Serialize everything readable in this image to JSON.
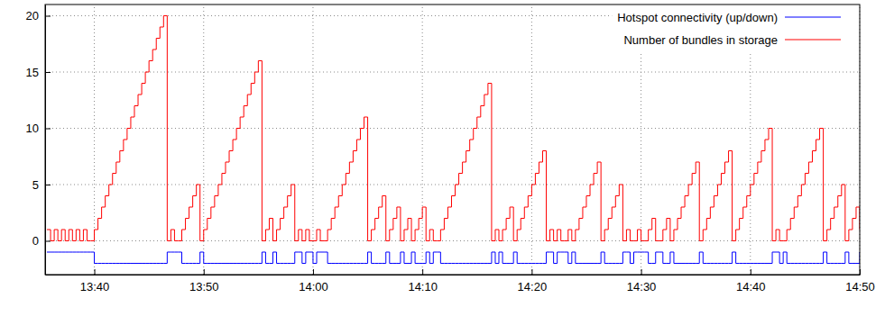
{
  "chart_data": {
    "type": "line",
    "line_style": "steps",
    "grid": true,
    "legend": "top-right",
    "xlim": [
      48930,
      53400
    ],
    "xticks": [
      {
        "value": 49200,
        "label": "13:40"
      },
      {
        "value": 49800,
        "label": "13:50"
      },
      {
        "value": 50400,
        "label": "14:00"
      },
      {
        "value": 51000,
        "label": "14:10"
      },
      {
        "value": 51600,
        "label": "14:20"
      },
      {
        "value": 52200,
        "label": "14:30"
      },
      {
        "value": 52800,
        "label": "14:40"
      },
      {
        "value": 53400,
        "label": "14:50"
      }
    ],
    "ylim": [
      -3,
      21
    ],
    "yticks": [
      0,
      5,
      10,
      15,
      20
    ],
    "x": [
      48940,
      48960,
      48980,
      49000,
      49020,
      49040,
      49060,
      49080,
      49100,
      49120,
      49140,
      49160,
      49180,
      49200,
      49220,
      49240,
      49260,
      49280,
      49300,
      49320,
      49340,
      49360,
      49380,
      49400,
      49420,
      49440,
      49460,
      49480,
      49500,
      49520,
      49540,
      49560,
      49580,
      49600,
      49620,
      49640,
      49660,
      49680,
      49700,
      49720,
      49740,
      49760,
      49780,
      49800,
      49820,
      49840,
      49860,
      49880,
      49900,
      49920,
      49940,
      49960,
      49980,
      50000,
      50020,
      50040,
      50060,
      50080,
      50100,
      50120,
      50140,
      50160,
      50180,
      50200,
      50220,
      50240,
      50260,
      50280,
      50300,
      50320,
      50340,
      50360,
      50380,
      50400,
      50420,
      50440,
      50460,
      50480,
      50500,
      50520,
      50540,
      50560,
      50580,
      50600,
      50620,
      50640,
      50660,
      50680,
      50700,
      50720,
      50740,
      50760,
      50780,
      50800,
      50820,
      50840,
      50860,
      50880,
      50900,
      50920,
      50940,
      50960,
      50980,
      51000,
      51020,
      51040,
      51060,
      51080,
      51100,
      51120,
      51140,
      51160,
      51180,
      51200,
      51220,
      51240,
      51260,
      51280,
      51300,
      51320,
      51340,
      51360,
      51380,
      51400,
      51420,
      51440,
      51460,
      51480,
      51500,
      51520,
      51540,
      51560,
      51580,
      51600,
      51620,
      51640,
      51660,
      51680,
      51700,
      51720,
      51740,
      51760,
      51780,
      51800,
      51820,
      51840,
      51860,
      51880,
      51900,
      51920,
      51940,
      51960,
      51980,
      52000,
      52020,
      52040,
      52060,
      52080,
      52100,
      52120,
      52140,
      52160,
      52180,
      52200,
      52220,
      52240,
      52260,
      52280,
      52300,
      52320,
      52340,
      52360,
      52380,
      52400,
      52420,
      52440,
      52460,
      52480,
      52500,
      52520,
      52540,
      52560,
      52580,
      52600,
      52620,
      52640,
      52660,
      52680,
      52700,
      52720,
      52740,
      52760,
      52780,
      52800,
      52820,
      52840,
      52860,
      52880,
      52900,
      52920,
      52940,
      52960,
      52980,
      53000,
      53020,
      53040,
      53060,
      53080,
      53100,
      53120,
      53140,
      53160,
      53180,
      53200,
      53220,
      53240,
      53260,
      53280,
      53300,
      53320,
      53340,
      53360,
      53380,
      53400
    ],
    "series": [
      {
        "name": "Hotspot connectivity (up/down)",
        "color": "#0000ff",
        "values": [
          -1,
          -1,
          -1,
          -1,
          -1,
          -1,
          -1,
          -1,
          -1,
          -1,
          -1,
          -1,
          -1,
          -2,
          -2,
          -2,
          -2,
          -2,
          -2,
          -2,
          -2,
          -2,
          -2,
          -2,
          -2,
          -2,
          -2,
          -2,
          -2,
          -2,
          -2,
          -2,
          -2,
          -1,
          -1,
          -1,
          -1,
          -2,
          -2,
          -2,
          -2,
          -2,
          -1,
          -2,
          -2,
          -2,
          -2,
          -2,
          -2,
          -2,
          -2,
          -2,
          -2,
          -2,
          -2,
          -2,
          -2,
          -2,
          -2,
          -1,
          -2,
          -2,
          -1,
          -2,
          -2,
          -2,
          -2,
          -2,
          -1,
          -1,
          -2,
          -1,
          -1,
          -2,
          -1,
          -1,
          -1,
          -2,
          -2,
          -2,
          -2,
          -2,
          -2,
          -2,
          -2,
          -2,
          -2,
          -2,
          -1,
          -2,
          -2,
          -2,
          -2,
          -1,
          -2,
          -2,
          -2,
          -1,
          -2,
          -2,
          -1,
          -2,
          -2,
          -2,
          -1,
          -2,
          -1,
          -1,
          -2,
          -2,
          -2,
          -2,
          -2,
          -2,
          -2,
          -2,
          -2,
          -2,
          -2,
          -2,
          -2,
          -2,
          -1,
          -2,
          -1,
          -2,
          -2,
          -2,
          -1,
          -2,
          -2,
          -2,
          -2,
          -2,
          -2,
          -2,
          -2,
          -1,
          -1,
          -2,
          -1,
          -1,
          -1,
          -2,
          -1,
          -2,
          -2,
          -2,
          -2,
          -2,
          -2,
          -2,
          -1,
          -2,
          -2,
          -2,
          -2,
          -2,
          -1,
          -1,
          -2,
          -1,
          -1,
          -1,
          -1,
          -2,
          -2,
          -1,
          -1,
          -2,
          -2,
          -1,
          -2,
          -2,
          -2,
          -2,
          -2,
          -2,
          -2,
          -1,
          -2,
          -2,
          -2,
          -2,
          -2,
          -2,
          -2,
          -2,
          -1,
          -2,
          -2,
          -2,
          -2,
          -2,
          -2,
          -2,
          -2,
          -2,
          -2,
          -1,
          -1,
          -2,
          -1,
          -2,
          -2,
          -2,
          -2,
          -2,
          -2,
          -2,
          -2,
          -2,
          -2,
          -1,
          -2,
          -2,
          -2,
          -2,
          -2,
          -1,
          -2,
          -2,
          -2,
          -1
        ]
      },
      {
        "name": "Number of bundles in storage",
        "color": "#ff0000",
        "values": [
          1,
          0,
          1,
          0,
          1,
          0,
          1,
          0,
          1,
          0,
          1,
          0,
          0,
          1,
          2,
          3,
          4,
          5,
          6,
          7,
          8,
          9,
          10,
          11,
          12,
          13,
          14,
          15,
          16,
          17,
          18,
          19,
          20,
          0,
          1,
          0,
          0,
          1,
          2,
          3,
          4,
          5,
          0,
          1,
          2,
          3,
          4,
          5,
          6,
          7,
          8,
          9,
          10,
          11,
          12,
          13,
          14,
          15,
          16,
          0,
          1,
          2,
          0,
          1,
          2,
          3,
          4,
          5,
          0,
          1,
          0,
          1,
          0,
          0,
          1,
          0,
          0,
          1,
          2,
          3,
          4,
          5,
          6,
          7,
          8,
          9,
          10,
          11,
          0,
          1,
          2,
          3,
          4,
          0,
          1,
          2,
          3,
          0,
          1,
          2,
          0,
          1,
          2,
          3,
          0,
          1,
          0,
          0,
          1,
          2,
          3,
          4,
          5,
          6,
          7,
          8,
          9,
          10,
          11,
          12,
          13,
          14,
          0,
          1,
          0,
          1,
          2,
          3,
          0,
          1,
          2,
          3,
          4,
          5,
          6,
          7,
          8,
          0,
          1,
          0,
          1,
          0,
          0,
          1,
          0,
          1,
          2,
          3,
          4,
          5,
          6,
          7,
          0,
          1,
          2,
          3,
          4,
          5,
          0,
          1,
          0,
          0,
          1,
          0,
          0,
          1,
          2,
          0,
          0,
          1,
          2,
          0,
          1,
          2,
          3,
          4,
          5,
          6,
          7,
          0,
          1,
          2,
          3,
          4,
          5,
          6,
          7,
          8,
          0,
          1,
          2,
          3,
          4,
          5,
          6,
          7,
          8,
          9,
          10,
          0,
          1,
          0,
          0,
          1,
          2,
          3,
          4,
          5,
          6,
          7,
          8,
          9,
          10,
          0,
          1,
          2,
          3,
          4,
          5,
          0,
          1,
          2,
          3,
          1
        ]
      }
    ]
  }
}
